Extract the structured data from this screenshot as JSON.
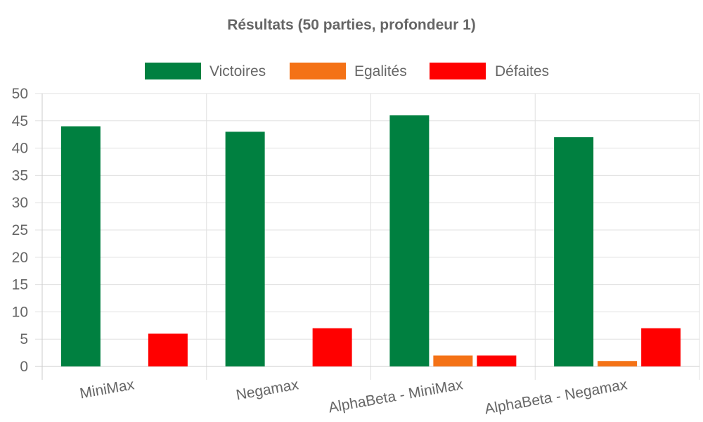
{
  "chart_data": {
    "type": "bar",
    "title": "Résultats (50 parties, profondeur 1)",
    "categories": [
      "MiniMax",
      "Negamax",
      "AlphaBeta - MiniMax",
      "AlphaBeta - Negamax"
    ],
    "series": [
      {
        "name": "Victoires",
        "color": "#008040",
        "values": [
          44,
          43,
          46,
          42
        ]
      },
      {
        "name": "Egalités",
        "color": "#f47216",
        "values": [
          0,
          0,
          2,
          1
        ]
      },
      {
        "name": "Défaites",
        "color": "#ff0000",
        "values": [
          6,
          7,
          2,
          7
        ]
      }
    ],
    "ylim": [
      0,
      50
    ],
    "yticks": [
      0,
      5,
      10,
      15,
      20,
      25,
      30,
      35,
      40,
      45,
      50
    ],
    "xlabel": "",
    "ylabel": "",
    "grid": true,
    "legend_position": "top"
  }
}
